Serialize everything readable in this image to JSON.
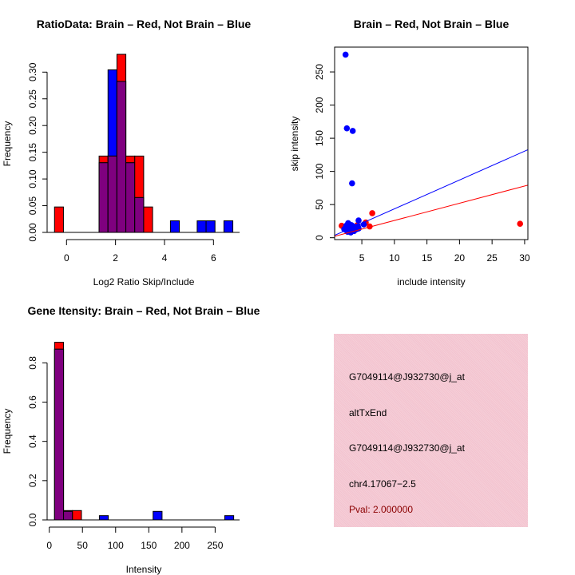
{
  "colors": {
    "brain": "#ff0000",
    "not_brain": "#0000ff",
    "overlap": "#7f007f",
    "info_text": "#000000",
    "pval_text": "#8b0000",
    "info_bg": "#f3c3cf"
  },
  "chart_data": [
    {
      "id": "ratio",
      "type": "bar",
      "title": "RatioData: Brain – Red, Not Brain – Blue",
      "xlabel": "Log2 Ratio Skip/Include",
      "ylabel": "Frequency",
      "bin_start": -0.49,
      "bin_width": 0.364,
      "xticks": [
        "0",
        "2",
        "4",
        "6"
      ],
      "xtick_values": [
        0,
        2,
        4,
        6
      ],
      "yticks": [
        "0.00",
        "0.05",
        "0.10",
        "0.15",
        "0.20",
        "0.25",
        "0.30"
      ],
      "ytick_values": [
        0,
        0.05,
        0.1,
        0.15,
        0.2,
        0.25,
        0.3
      ],
      "series": [
        {
          "name": "Brain",
          "color": "#ff0000",
          "values": [
            0.0476,
            0,
            0,
            0,
            0,
            0.1429,
            0.1429,
            0.3333,
            0.1429,
            0.1429,
            0.0476,
            0,
            0,
            0,
            0,
            0,
            0,
            0,
            0,
            0
          ]
        },
        {
          "name": "Not Brain",
          "color": "#0000ff",
          "values": [
            0,
            0,
            0,
            0,
            0,
            0.1304,
            0.3043,
            0.2826,
            0.1304,
            0.0652,
            0,
            0,
            0,
            0.0217,
            0,
            0,
            0.0217,
            0.0217,
            0,
            0.0217
          ]
        }
      ]
    },
    {
      "id": "scatter",
      "type": "scatter",
      "title": "Brain – Red, Not Brain – Blue",
      "xlabel": "include intensity",
      "ylabel": "skip intensity",
      "xlim": [
        0.82,
        30.5
      ],
      "ylim": [
        -2.8,
        287.4
      ],
      "xticks": [
        "5",
        "10",
        "15",
        "20",
        "25",
        "30"
      ],
      "xtick_values": [
        5,
        10,
        15,
        20,
        25,
        30
      ],
      "yticks": [
        "0",
        "50",
        "100",
        "150",
        "200",
        "250"
      ],
      "ytick_values": [
        0,
        50,
        100,
        150,
        200,
        250
      ],
      "series": [
        {
          "name": "Brain",
          "color": "#ff0000",
          "points": [
            [
              1.9,
              18
            ],
            [
              6.6,
              37
            ],
            [
              6.2,
              17
            ],
            [
              5.6,
              23
            ],
            [
              4.3,
              19
            ],
            [
              29.3,
              21
            ],
            [
              3.0,
              10
            ],
            [
              2.4,
              16
            ]
          ]
        },
        {
          "name": "Not Brain",
          "color": "#0000ff",
          "points": [
            [
              2.5,
              276
            ],
            [
              2.7,
              165
            ],
            [
              3.6,
              161
            ],
            [
              3.5,
              82
            ],
            [
              4.5,
              26
            ],
            [
              5.3,
              20
            ],
            [
              2.3,
              13
            ],
            [
              2.6,
              18
            ],
            [
              2.9,
              22
            ],
            [
              3.0,
              15
            ],
            [
              3.2,
              11
            ],
            [
              3.4,
              19
            ],
            [
              3.6,
              14
            ],
            [
              3.8,
              10
            ],
            [
              4.0,
              16
            ],
            [
              4.2,
              13
            ],
            [
              4.4,
              17
            ],
            [
              2.8,
              9
            ],
            [
              3.3,
              8
            ],
            [
              2.5,
              12
            ],
            [
              3.1,
              20
            ],
            [
              3.7,
              17
            ],
            [
              4.5,
              14
            ],
            [
              2.7,
              15
            ],
            [
              3.5,
              12
            ],
            [
              3.9,
              13
            ]
          ]
        }
      ],
      "lines": [
        {
          "name": "Not Brain fit",
          "color": "#0000ff",
          "slope": 4.35,
          "intercept": 0
        },
        {
          "name": "Brain fit",
          "color": "#ff0000",
          "slope": 2.6,
          "intercept": 0
        }
      ]
    },
    {
      "id": "intensity",
      "type": "bar",
      "title": "Gene Itensity: Brain – Red, Not Brain – Blue",
      "xlabel": "Intensity",
      "ylabel": "Frequency",
      "bin_start": 8,
      "bin_width": 13.5,
      "xticks": [
        "0",
        "50",
        "100",
        "150",
        "200",
        "250"
      ],
      "xtick_values": [
        0,
        50,
        100,
        150,
        200,
        250
      ],
      "yticks": [
        "0.0",
        "0.2",
        "0.4",
        "0.6",
        "0.8"
      ],
      "ytick_values": [
        0,
        0.2,
        0.4,
        0.6,
        0.8
      ],
      "series": [
        {
          "name": "Brain",
          "color": "#ff0000",
          "values": [
            0.9048,
            0.0476,
            0.0476,
            0,
            0,
            0,
            0,
            0,
            0,
            0,
            0,
            0,
            0,
            0,
            0,
            0,
            0,
            0,
            0,
            0
          ]
        },
        {
          "name": "Not Brain",
          "color": "#0000ff",
          "values": [
            0.8696,
            0.0435,
            0,
            0,
            0,
            0.0217,
            0,
            0,
            0,
            0,
            0,
            0.0435,
            0,
            0,
            0,
            0,
            0,
            0,
            0,
            0.0217
          ]
        }
      ]
    }
  ],
  "info": {
    "probe_id": "G7049114@J932730@j_at",
    "event_type": "altTxEnd",
    "probe_id_2": "G7049114@J932730@j_at",
    "location": "chr4.17067−2.5",
    "pval": "Pval: 2.000000"
  }
}
